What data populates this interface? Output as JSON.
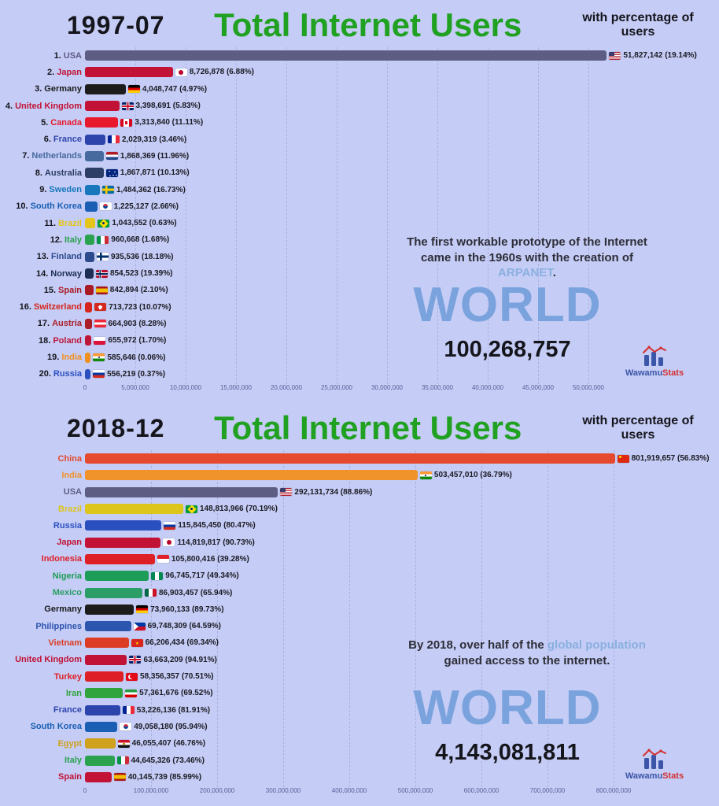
{
  "page": {
    "background": "#c5ccf5"
  },
  "colors": {
    "title_green": "#21a121",
    "world_blue": "#7aa3de",
    "annotation_highlight": "#8ab0e0",
    "gridline": "#aab2e0"
  },
  "logo": {
    "text_primary": "Wawamu",
    "text_secondary": "Stats"
  },
  "chart_data": [
    {
      "type": "bar",
      "orientation": "horizontal",
      "date": "1997-07",
      "title": "Total Internet Users",
      "subtitle": "with percentage of users",
      "x_tick_labels": [
        "0",
        "5,000,000",
        "10,000,000",
        "15,000,000",
        "20,000,000",
        "25,000,000",
        "30,000,000",
        "35,000,000",
        "40,000,000",
        "45,000,000",
        "50,000,000"
      ],
      "xlim": [
        0,
        50000000
      ],
      "grid": true,
      "bars": [
        {
          "rank": "1.",
          "country": "USA",
          "value": 51827142,
          "value_label": "51,827,142 (19.14%)",
          "color": "#5d5d84",
          "flag": "us"
        },
        {
          "rank": "2.",
          "country": "Japan",
          "value": 8726878,
          "value_label": "8,726,878 (6.88%)",
          "color": "#c21236",
          "flag": "jp"
        },
        {
          "rank": "3.",
          "country": "Germany",
          "value": 4048747,
          "value_label": "4,048,747 (4.97%)",
          "color": "#1c1c1c",
          "flag": "de"
        },
        {
          "rank": "4.",
          "country": "United Kingdom",
          "value": 3398691,
          "value_label": "3,398,691 (5.83%)",
          "color": "#c21236",
          "flag": "gb"
        },
        {
          "rank": "5.",
          "country": "Canada",
          "value": 3313840,
          "value_label": "3,313,840 (11.11%)",
          "color": "#e8192d",
          "flag": "ca"
        },
        {
          "rank": "6.",
          "country": "France",
          "value": 2029319,
          "value_label": "2,029,319 (3.46%)",
          "color": "#2e44ad",
          "flag": "fr"
        },
        {
          "rank": "7.",
          "country": "Netherlands",
          "value": 1868369,
          "value_label": "1,868,369 (11.96%)",
          "color": "#466a9e",
          "flag": "nl"
        },
        {
          "rank": "8.",
          "country": "Australia",
          "value": 1867871,
          "value_label": "1,867,871 (10.13%)",
          "color": "#2c3e66",
          "flag": "au"
        },
        {
          "rank": "9.",
          "country": "Sweden",
          "value": 1484362,
          "value_label": "1,484,362 (16.73%)",
          "color": "#1878bc",
          "flag": "se"
        },
        {
          "rank": "10.",
          "country": "South Korea",
          "value": 1225127,
          "value_label": "1,225,127 (2.66%)",
          "color": "#1a5fb4",
          "flag": "kr"
        },
        {
          "rank": "11.",
          "country": "Brazil",
          "value": 1043552,
          "value_label": "1,043,552 (0.63%)",
          "color": "#e3c619",
          "flag": "br"
        },
        {
          "rank": "12.",
          "country": "Italy",
          "value": 960668,
          "value_label": "960,668 (1.68%)",
          "color": "#2aa24e",
          "flag": "it"
        },
        {
          "rank": "13.",
          "country": "Finland",
          "value": 935536,
          "value_label": "935,536 (18.18%)",
          "color": "#2c4a8c",
          "flag": "fi"
        },
        {
          "rank": "14.",
          "country": "Norway",
          "value": 854523,
          "value_label": "854,523 (19.39%)",
          "color": "#1d2d54",
          "flag": "no"
        },
        {
          "rank": "15.",
          "country": "Spain",
          "value": 842894,
          "value_label": "842,894 (2.10%)",
          "color": "#a81b24",
          "flag": "es"
        },
        {
          "rank": "16.",
          "country": "Switzerland",
          "value": 713723,
          "value_label": "713,723 (10.07%)",
          "color": "#d5251c",
          "flag": "ch"
        },
        {
          "rank": "17.",
          "country": "Austria",
          "value": 664903,
          "value_label": "664,903 (8.28%)",
          "color": "#aa1e28",
          "flag": "at"
        },
        {
          "rank": "18.",
          "country": "Poland",
          "value": 655972,
          "value_label": "655,972 (1.70%)",
          "color": "#bc1638",
          "flag": "pl"
        },
        {
          "rank": "19.",
          "country": "India",
          "value": 585646,
          "value_label": "585,646 (0.06%)",
          "color": "#f0901e",
          "flag": "in"
        },
        {
          "rank": "20.",
          "country": "Russia",
          "value": 556219,
          "value_label": "556,219 (0.37%)",
          "color": "#2a50c0",
          "flag": "ru"
        }
      ],
      "annotation": [
        {
          "text": "The first workable prototype of the Internet came in the 1960s with the creation of "
        },
        {
          "text": "ARPANET",
          "highlight": true
        },
        {
          "text": "."
        }
      ],
      "world_label": "WORLD",
      "world_total": "100,268,757"
    },
    {
      "type": "bar",
      "orientation": "horizontal",
      "date": "2018-12",
      "title": "Total Internet Users",
      "subtitle": "with percentage of users",
      "x_tick_labels": [
        "0",
        "100,000,000",
        "200,000,000",
        "300,000,000",
        "400,000,000",
        "500,000,000",
        "600,000,000",
        "700,000,000",
        "800,000,000"
      ],
      "xlim": [
        0,
        800000000
      ],
      "grid": true,
      "bars": [
        {
          "rank": "",
          "country": "China",
          "value": 801919657,
          "value_label": "801,919,657 (56.83%)",
          "color": "#e5492e",
          "flag": "cn"
        },
        {
          "rank": "",
          "country": "India",
          "value": 503457010,
          "value_label": "503,457,010 (36.79%)",
          "color": "#f0932a",
          "flag": "in"
        },
        {
          "rank": "",
          "country": "USA",
          "value": 292131734,
          "value_label": "292,131,734 (88.86%)",
          "color": "#5d5d84",
          "flag": "us"
        },
        {
          "rank": "",
          "country": "Brazil",
          "value": 148813966,
          "value_label": "148,813,966 (70.19%)",
          "color": "#ddc51c",
          "flag": "br"
        },
        {
          "rank": "",
          "country": "Russia",
          "value": 115845450,
          "value_label": "115,845,450 (80.47%)",
          "color": "#2a50c0",
          "flag": "ru"
        },
        {
          "rank": "",
          "country": "Japan",
          "value": 114819817,
          "value_label": "114,819,817 (90.73%)",
          "color": "#c21236",
          "flag": "jp"
        },
        {
          "rank": "",
          "country": "Indonesia",
          "value": 105800416,
          "value_label": "105,800,416 (39.28%)",
          "color": "#df1f26",
          "flag": "id"
        },
        {
          "rank": "",
          "country": "Nigeria",
          "value": 96745717,
          "value_label": "96,745,717 (49.34%)",
          "color": "#1d9d57",
          "flag": "ng"
        },
        {
          "rank": "",
          "country": "Mexico",
          "value": 86903457,
          "value_label": "86,903,457 (65.94%)",
          "color": "#2a9e66",
          "flag": "mx"
        },
        {
          "rank": "",
          "country": "Germany",
          "value": 73960133,
          "value_label": "73,960,133 (89.73%)",
          "color": "#1c1c1c",
          "flag": "de"
        },
        {
          "rank": "",
          "country": "Philippines",
          "value": 69748309,
          "value_label": "69,748,309 (64.59%)",
          "color": "#2c55ae",
          "flag": "ph"
        },
        {
          "rank": "",
          "country": "Vietnam",
          "value": 66206434,
          "value_label": "66,206,434 (69.34%)",
          "color": "#dd3c24",
          "flag": "vn"
        },
        {
          "rank": "",
          "country": "United Kingdom",
          "value": 63663209,
          "value_label": "63,663,209 (94.91%)",
          "color": "#c21236",
          "flag": "gb"
        },
        {
          "rank": "",
          "country": "Turkey",
          "value": 58356357,
          "value_label": "58,356,357 (70.51%)",
          "color": "#df1f26",
          "flag": "tr"
        },
        {
          "rank": "",
          "country": "Iran",
          "value": 57361676,
          "value_label": "57,361,676 (69.52%)",
          "color": "#2fa33c",
          "flag": "ir"
        },
        {
          "rank": "",
          "country": "France",
          "value": 53226136,
          "value_label": "53,226,136 (81.91%)",
          "color": "#2e44ad",
          "flag": "fr"
        },
        {
          "rank": "",
          "country": "South Korea",
          "value": 49058180,
          "value_label": "49,058,180 (95.94%)",
          "color": "#1a5fb4",
          "flag": "kr"
        },
        {
          "rank": "",
          "country": "Egypt",
          "value": 46055407,
          "value_label": "46,055,407 (46.76%)",
          "color": "#cfa11c",
          "flag": "eg"
        },
        {
          "rank": "",
          "country": "Italy",
          "value": 44645326,
          "value_label": "44,645,326 (73.46%)",
          "color": "#2aa24e",
          "flag": "it"
        },
        {
          "rank": "",
          "country": "Spain",
          "value": 40145739,
          "value_label": "40,145,739 (85.99%)",
          "color": "#c21236",
          "flag": "es"
        }
      ],
      "annotation": [
        {
          "text": "By 2018, over half of the "
        },
        {
          "text": "global population",
          "highlight": true
        },
        {
          "text": " gained access to the internet."
        }
      ],
      "world_label": "WORLD",
      "world_total": "4,143,081,811"
    }
  ]
}
